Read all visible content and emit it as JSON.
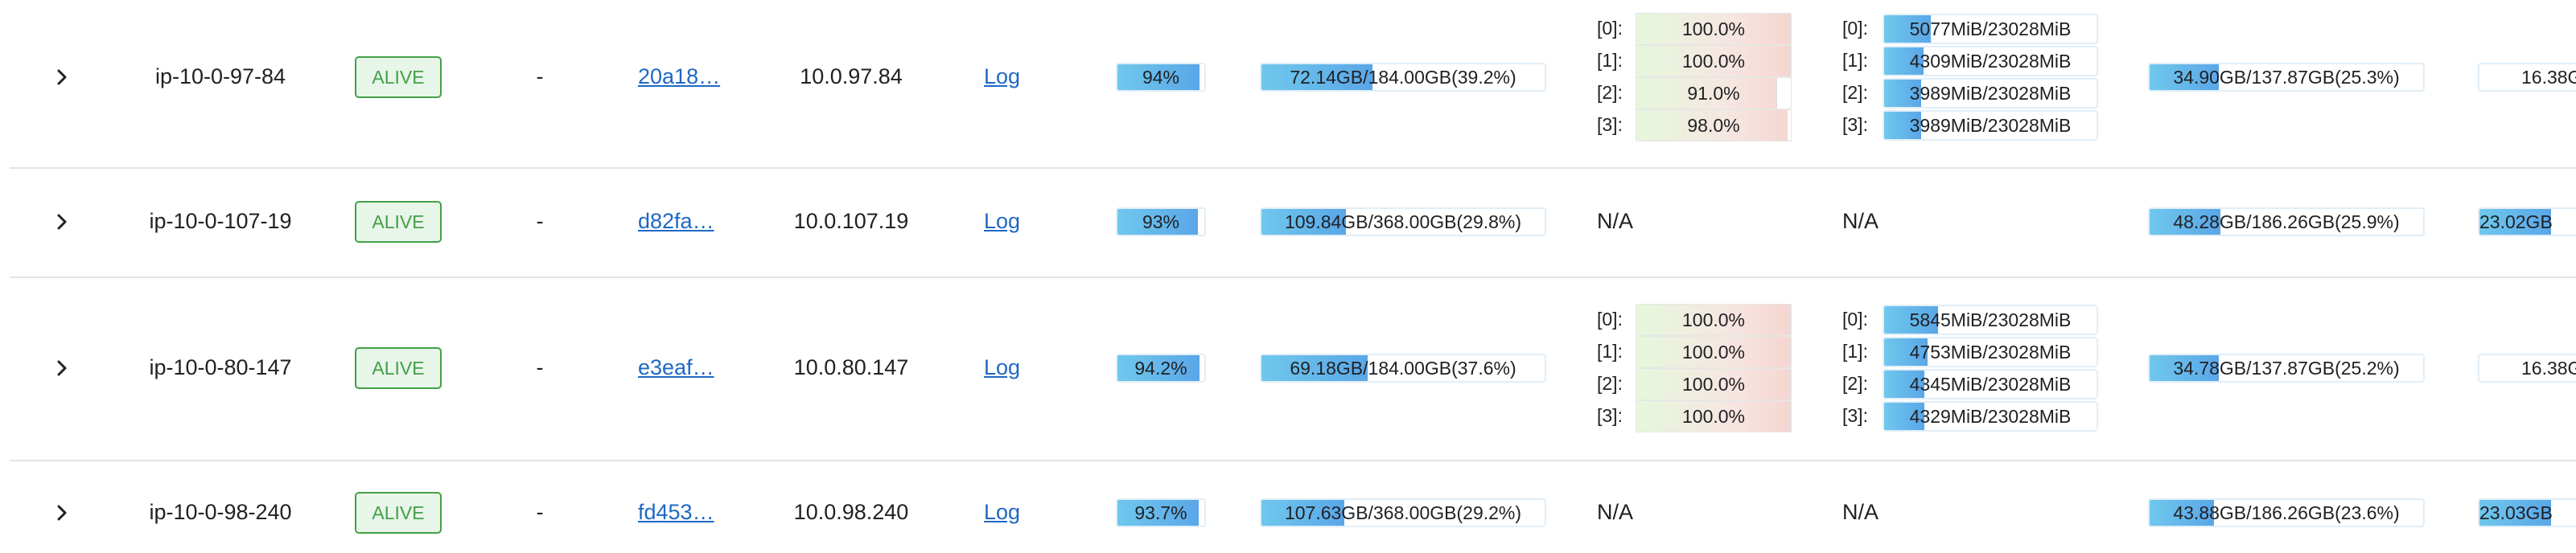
{
  "rows": [
    {
      "host": "ip-10-0-97-84",
      "state": "ALIVE",
      "dash": "-",
      "id": "20a18…",
      "ip": "10.0.97.84",
      "log": "Log",
      "cpu": {
        "label": "94%",
        "value": 94
      },
      "mem": {
        "label": "72.14GB/184.00GB(39.2%)",
        "value": 39.2
      },
      "gpu_util": [
        {
          "index": "[0]:",
          "label": "100.0%",
          "value": 100.0
        },
        {
          "index": "[1]:",
          "label": "100.0%",
          "value": 100.0
        },
        {
          "index": "[2]:",
          "label": "91.0%",
          "value": 91.0
        },
        {
          "index": "[3]:",
          "label": "98.0%",
          "value": 98.0
        }
      ],
      "gpu_mem": [
        {
          "index": "[0]:",
          "label": "5077MiB/23028MiB",
          "value": 22.0
        },
        {
          "index": "[1]:",
          "label": "4309MiB/23028MiB",
          "value": 18.7
        },
        {
          "index": "[2]:",
          "label": "3989MiB/23028MiB",
          "value": 17.3
        },
        {
          "index": "[3]:",
          "label": "3989MiB/23028MiB",
          "value": 17.3
        }
      ],
      "disk": {
        "label": "34.90GB/137.87GB(25.3%)",
        "value": 25.3
      },
      "extra": {
        "label": "16.38G",
        "value": 0
      }
    },
    {
      "host": "ip-10-0-107-19",
      "state": "ALIVE",
      "dash": "-",
      "id": "d82fa…",
      "ip": "10.0.107.19",
      "log": "Log",
      "cpu": {
        "label": "93%",
        "value": 93
      },
      "mem": {
        "label": "109.84GB/368.00GB(29.8%)",
        "value": 29.8
      },
      "gpu_na": "N/A",
      "gpu_mem_na": "N/A",
      "disk": {
        "label": "48.28GB/186.26GB(25.9%)",
        "value": 25.9
      },
      "extra": {
        "label": "23.02GB",
        "value": 45
      }
    },
    {
      "host": "ip-10-0-80-147",
      "state": "ALIVE",
      "dash": "-",
      "id": "e3eaf…",
      "ip": "10.0.80.147",
      "log": "Log",
      "cpu": {
        "label": "94.2%",
        "value": 94.2
      },
      "mem": {
        "label": "69.18GB/184.00GB(37.6%)",
        "value": 37.6
      },
      "gpu_util": [
        {
          "index": "[0]:",
          "label": "100.0%",
          "value": 100.0
        },
        {
          "index": "[1]:",
          "label": "100.0%",
          "value": 100.0
        },
        {
          "index": "[2]:",
          "label": "100.0%",
          "value": 100.0
        },
        {
          "index": "[3]:",
          "label": "100.0%",
          "value": 100.0
        }
      ],
      "gpu_mem": [
        {
          "index": "[0]:",
          "label": "5845MiB/23028MiB",
          "value": 25.4
        },
        {
          "index": "[1]:",
          "label": "4753MiB/23028MiB",
          "value": 20.6
        },
        {
          "index": "[2]:",
          "label": "4345MiB/23028MiB",
          "value": 18.9
        },
        {
          "index": "[3]:",
          "label": "4329MiB/23028MiB",
          "value": 18.8
        }
      ],
      "disk": {
        "label": "34.78GB/137.87GB(25.2%)",
        "value": 25.2
      },
      "extra": {
        "label": "16.38G",
        "value": 0
      }
    },
    {
      "host": "ip-10-0-98-240",
      "state": "ALIVE",
      "dash": "-",
      "id": "fd453…",
      "ip": "10.0.98.240",
      "log": "Log",
      "cpu": {
        "label": "93.7%",
        "value": 93.7
      },
      "mem": {
        "label": "107.63GB/368.00GB(29.2%)",
        "value": 29.2
      },
      "gpu_na": "N/A",
      "gpu_mem_na": "N/A",
      "disk": {
        "label": "43.88GB/186.26GB(23.6%)",
        "value": 23.6
      },
      "extra": {
        "label": "23.03GB",
        "value": 45
      }
    }
  ]
}
